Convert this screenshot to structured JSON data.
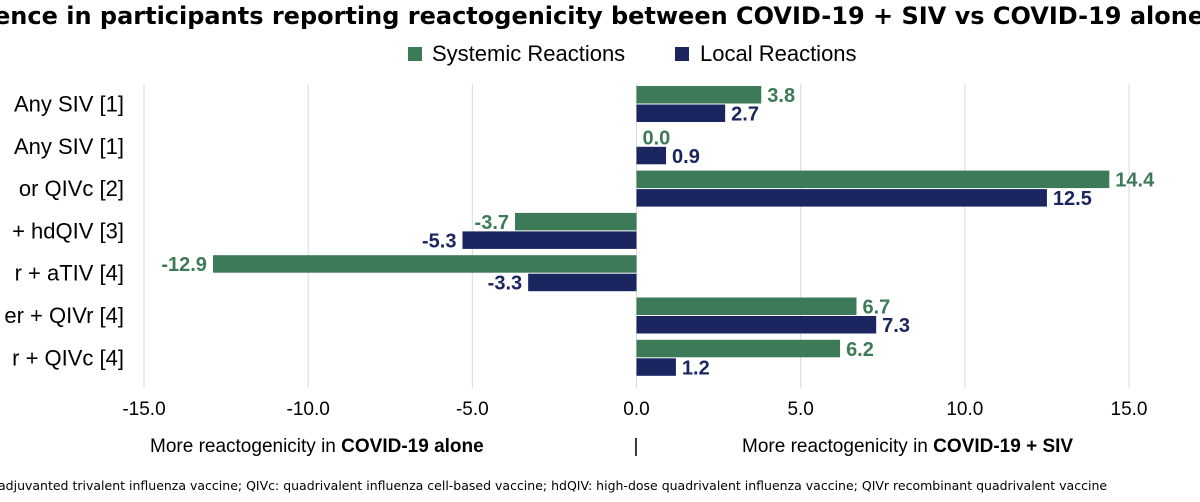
{
  "colors": {
    "systemic": "#3d7a57",
    "local": "#1b2560",
    "grid": "#d9d9d9"
  },
  "chart_data": {
    "type": "bar",
    "orientation": "horizontal",
    "title": "ence in participants reporting reactogenicity between COVID-19 + SIV vs COVID-19 alone",
    "categories": [
      "Any SIV [1]",
      "Any SIV [1]",
      "or QIVc [2]",
      "+ hdQIV [3]",
      "r + aTIV [4]",
      "er + QIVr [4]",
      "r + QIVc [4]"
    ],
    "series": [
      {
        "name": "Systemic Reactions",
        "values": [
          3.8,
          0.0,
          14.4,
          -3.7,
          -12.9,
          6.7,
          6.2
        ],
        "labels": [
          "3.8",
          "0.0",
          "14.4",
          "-3.7",
          "-12.9",
          "6.7",
          "6.2"
        ]
      },
      {
        "name": "Local Reactions",
        "values": [
          2.7,
          0.9,
          12.5,
          -5.3,
          -3.3,
          7.3,
          1.2
        ],
        "labels": [
          "2.7",
          "0.9",
          "12.5",
          "-5.3",
          "-3.3",
          "7.3",
          "1.2"
        ]
      }
    ],
    "xlim": [
      -15,
      15
    ],
    "ticks": [
      -15,
      -10,
      -5,
      0,
      5,
      10,
      15
    ],
    "tick_labels": [
      "-15.0",
      "-10.0",
      "-5.0",
      "0.0",
      "5.0",
      "10.0",
      "15.0"
    ],
    "grid": true,
    "legend_position": "top"
  },
  "axis_note": {
    "left_prefix": "More reactogenicity in ",
    "left_bold": "COVID-19 alone",
    "separator": "|",
    "right_prefix": "More reactogenicity in ",
    "right_bold": "COVID-19 + SIV"
  },
  "footnote": "adjuvanted trivalent influenza vaccine; QIVc: quadrivalent influenza cell-based vaccine; hdQIV: high-dose quadrivalent influenza vaccine; QIVr recombinant quadrivalent vaccine"
}
